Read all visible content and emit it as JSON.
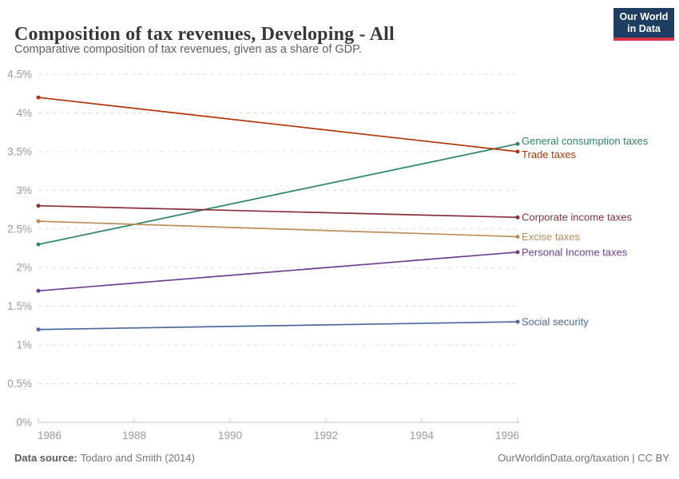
{
  "header": {
    "title": "Composition of tax revenues, Developing - All",
    "subtitle": "Comparative composition of tax revenues, given as a share of GDP.",
    "logo": {
      "line1": "Our World",
      "line2": "in Data",
      "bg_color": "#1d3d63",
      "accent_color": "#d73747",
      "text_color": "#ffffff"
    }
  },
  "chart_data": {
    "type": "line",
    "title": "Composition of tax revenues, Developing - All",
    "subtitle": "Comparative composition of tax revenues, given as a share of GDP.",
    "xlabel": "",
    "ylabel": "",
    "x": [
      1986,
      1996
    ],
    "xticks": [
      1986,
      1988,
      1990,
      1992,
      1994,
      1996
    ],
    "ylim": [
      0,
      4.5
    ],
    "yticks": [
      0,
      0.5,
      1,
      1.5,
      2,
      2.5,
      3,
      3.5,
      4,
      4.5
    ],
    "ytick_suffix": "%",
    "grid": "horizontal-dashed",
    "label_position": "end-of-line",
    "series": [
      {
        "name": "General consumption taxes",
        "values": [
          2.3,
          3.6
        ],
        "color": "#2C8465"
      },
      {
        "name": "Trade taxes",
        "values": [
          4.2,
          3.5
        ],
        "color": "#B13507"
      },
      {
        "name": "Corporate income taxes",
        "values": [
          2.8,
          2.65
        ],
        "color": "#883039"
      },
      {
        "name": "Excise taxes",
        "values": [
          2.6,
          2.4
        ],
        "color": "#BC8E5A"
      },
      {
        "name": "Personal Income taxes",
        "values": [
          1.7,
          2.2
        ],
        "color": "#6D3E91"
      },
      {
        "name": "Social security",
        "values": [
          1.2,
          1.3
        ],
        "color": "#4C6A9C"
      }
    ]
  },
  "footer": {
    "source_label": "Data source:",
    "source_value": "Todaro and Smith (2014)",
    "credit": "OurWorldinData.org/taxation | CC BY"
  }
}
